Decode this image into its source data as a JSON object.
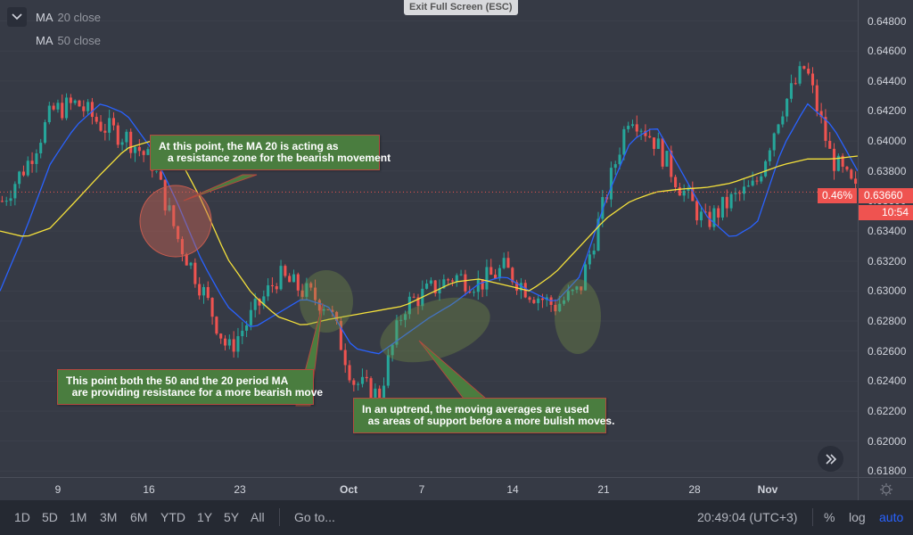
{
  "toolbar": {
    "exit_label": "Exit Full Screen (ESC)"
  },
  "legend": [
    {
      "name": "MA",
      "source": "20 close"
    },
    {
      "name": "MA",
      "source": "50 close"
    }
  ],
  "annotations": [
    {
      "lines": [
        "At this point, the MA 20 is acting as",
        "   a resistance zone for the bearish movement"
      ]
    },
    {
      "lines": [
        "This point both the 50 and the 20 period MA",
        "  are providing resistance for a more bearish move"
      ]
    },
    {
      "lines": [
        "In an uptrend, the moving averages are used",
        "  as areas of support before a more bulish moves."
      ]
    }
  ],
  "price_labels": [
    "0.64800",
    "0.64600",
    "0.64400",
    "0.64200",
    "0.64000",
    "0.63800",
    "0.63600",
    "0.63400",
    "0.63200",
    "0.63000",
    "0.62800",
    "0.62600",
    "0.62400",
    "0.62200",
    "0.62000",
    "0.61800"
  ],
  "last_price": {
    "value": "0.63660",
    "countdown": "10:54",
    "change": "0.46%"
  },
  "time_labels": [
    {
      "label": "9",
      "bold": false
    },
    {
      "label": "16",
      "bold": false
    },
    {
      "label": "23",
      "bold": false
    },
    {
      "label": "Oct",
      "bold": true
    },
    {
      "label": "7",
      "bold": false
    },
    {
      "label": "14",
      "bold": false
    },
    {
      "label": "21",
      "bold": false
    },
    {
      "label": "28",
      "bold": false
    },
    {
      "label": "Nov",
      "bold": true
    }
  ],
  "bottom": {
    "ranges": [
      "1D",
      "5D",
      "1M",
      "3M",
      "6M",
      "YTD",
      "1Y",
      "5Y",
      "All"
    ],
    "goto": "Go to...",
    "clock": "20:49:04 (UTC+3)",
    "percent": "%",
    "log": "log",
    "auto": "auto"
  },
  "colors": {
    "up": "#26a69a",
    "down": "#ef5350",
    "ma20": "#2962ff",
    "ma50": "#f5e13b",
    "auto": "#2962ff"
  },
  "chart_data": {
    "type": "candlestick",
    "title": "",
    "ylim": [
      0.6176,
      0.6494
    ],
    "price_ticks": [
      0.648,
      0.646,
      0.644,
      0.642,
      0.64,
      0.638,
      0.636,
      0.634,
      0.632,
      0.63,
      0.628,
      0.626,
      0.624,
      0.622,
      0.62,
      0.618
    ],
    "x_ticks": [
      "9",
      "16",
      "23",
      "Oct",
      "7",
      "14",
      "21",
      "28",
      "Nov"
    ],
    "series": [
      {
        "name": "MA 20 close",
        "color": "#2962ff",
        "values": [
          0.63,
          0.634,
          0.6385,
          0.641,
          0.6425,
          0.6418,
          0.6395,
          0.636,
          0.632,
          0.629,
          0.6275,
          0.6285,
          0.6295,
          0.629,
          0.6262,
          0.6258,
          0.627,
          0.6282,
          0.6292,
          0.6305,
          0.631,
          0.63,
          0.6292,
          0.631,
          0.636,
          0.64,
          0.641,
          0.638,
          0.635,
          0.6335,
          0.6345,
          0.6395,
          0.6425,
          0.641,
          0.638
        ]
      },
      {
        "name": "MA 50 close",
        "color": "#f5e13b",
        "values": [
          0.634,
          0.6336,
          0.6342,
          0.636,
          0.6378,
          0.6395,
          0.64,
          0.6392,
          0.636,
          0.6322,
          0.6298,
          0.6283,
          0.6277,
          0.6281,
          0.6284,
          0.6287,
          0.629,
          0.6298,
          0.6306,
          0.6308,
          0.6304,
          0.63,
          0.6312,
          0.633,
          0.6348,
          0.636,
          0.6366,
          0.6368,
          0.6369,
          0.6372,
          0.6378,
          0.6384,
          0.6388,
          0.6388,
          0.639
        ]
      },
      {
        "name": "Close",
        "values": [
          0.636,
          0.6385,
          0.642,
          0.6425,
          0.641,
          0.6402,
          0.6385,
          0.6335,
          0.63,
          0.626,
          0.6285,
          0.631,
          0.63,
          0.629,
          0.624,
          0.623,
          0.629,
          0.63,
          0.631,
          0.6305,
          0.6315,
          0.63,
          0.629,
          0.63,
          0.636,
          0.642,
          0.64,
          0.637,
          0.6345,
          0.636,
          0.637,
          0.642,
          0.645,
          0.639,
          0.6366
        ]
      }
    ],
    "last_price": 0.6366,
    "last_change_pct": 0.46
  }
}
